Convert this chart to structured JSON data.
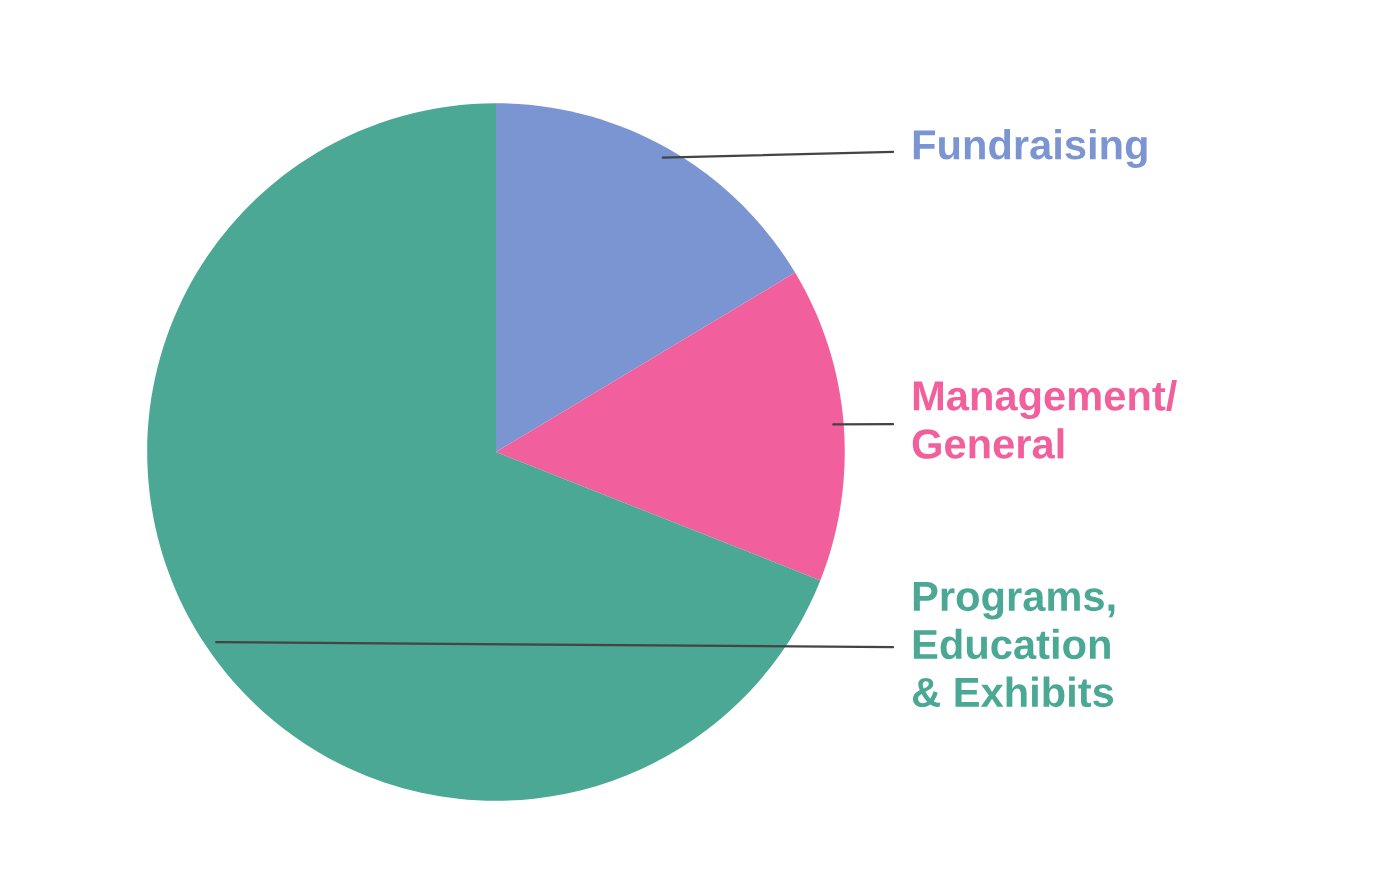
{
  "chart_data": {
    "type": "pie",
    "categories": [
      "Fundraising",
      "Management/\nGeneral",
      "Programs,\nEducation\n& Exhibits"
    ],
    "values": [
      16.4,
      14.6,
      69.0
    ],
    "colors": [
      "#7b95d3",
      "#f1609c",
      "#4aa894"
    ],
    "legend": false
  }
}
